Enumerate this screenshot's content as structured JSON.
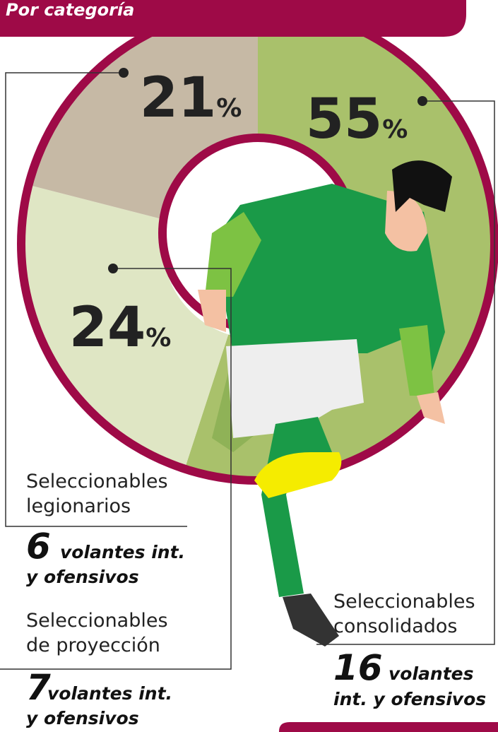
{
  "chart_data": {
    "type": "donut",
    "title": "Por categoría",
    "categories": [
      "Seleccionables consolidados",
      "Seleccionables de proyección",
      "Seleccionables legionarios"
    ],
    "values": [
      55,
      24,
      21
    ],
    "value_labels": [
      "55%",
      "24%",
      "21%"
    ],
    "colors": [
      "#a9c16b",
      "#dfe6c4",
      "#c6b9a5"
    ],
    "ring_color": "#9e0a47",
    "groups": [
      {
        "lines": [
          "Seleccionables",
          "consolidados"
        ],
        "count": 16,
        "desc": [
          "volantes",
          "int. y ofensivos"
        ]
      },
      {
        "lines": [
          "Seleccionables",
          "de proyección"
        ],
        "count": 7,
        "desc": [
          "volantes int.",
          "y ofensivos"
        ]
      },
      {
        "lines": [
          "Seleccionables",
          "legionarios"
        ],
        "count": 6,
        "desc": [
          "volantes int.",
          "y ofensivos"
        ]
      }
    ]
  }
}
